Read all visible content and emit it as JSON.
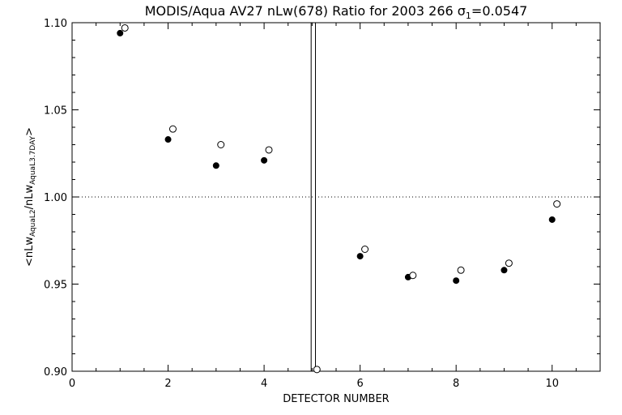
{
  "chart_data": {
    "type": "scatter",
    "title_main": "MODIS/Aqua AV27 nLw(678) Ratio for 2003 266 ",
    "title_sigma": "σ",
    "title_sub": "1",
    "title_value": "=0.0547",
    "xlabel": "DETECTOR NUMBER",
    "ylabel": {
      "open": "<nLw",
      "sub1": "AquaL2",
      "mid": "/nLw",
      "sub2": "AquaL3.7DAY",
      "close": ">"
    },
    "xlim": [
      0,
      11
    ],
    "ylim": [
      0.9,
      1.1
    ],
    "x_ticks": [
      0,
      2,
      4,
      6,
      8,
      10
    ],
    "x_tick_labels": [
      "0",
      "2",
      "4",
      "6",
      "8",
      "10"
    ],
    "y_ticks": [
      0.9,
      0.95,
      1.0,
      1.05,
      1.1
    ],
    "y_tick_labels": [
      "0.90",
      "0.95",
      "1.00",
      "1.05",
      "1.10"
    ],
    "reference_line": 1.0,
    "vertical_lines": [
      4.98,
      5.07
    ],
    "series": [
      {
        "marker": "filled-circle",
        "x": [
          1,
          2,
          3,
          4,
          6,
          7,
          8,
          9,
          10
        ],
        "y": [
          1.094,
          1.033,
          1.018,
          1.021,
          0.966,
          0.954,
          0.952,
          0.958,
          0.987
        ]
      },
      {
        "marker": "open-circle",
        "x": [
          1.1,
          2.1,
          3.1,
          4.1,
          5.1,
          6.1,
          7.1,
          8.1,
          9.1,
          10.1
        ],
        "y": [
          1.097,
          1.039,
          1.03,
          1.027,
          0.901,
          0.97,
          0.955,
          0.958,
          0.962,
          0.996
        ]
      }
    ],
    "grid": false
  }
}
